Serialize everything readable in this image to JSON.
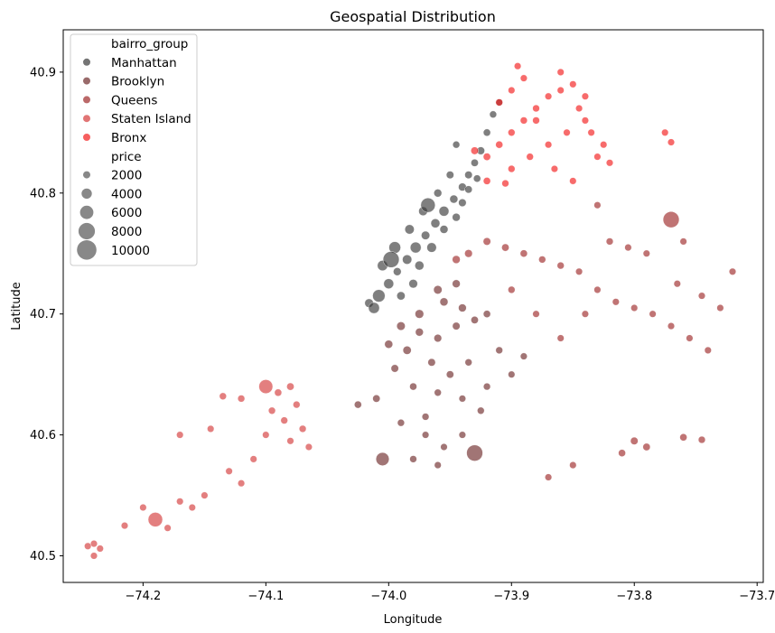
{
  "chart_data": {
    "type": "scatter",
    "title": "Geospatial Distribution",
    "xlabel": "Longitude",
    "ylabel": "Latitude",
    "xlim": [
      -74.265,
      -73.695
    ],
    "ylim": [
      40.478,
      40.935
    ],
    "xticks": [
      -74.2,
      -74.1,
      -74.0,
      -73.9,
      -73.8,
      -73.7
    ],
    "xtick_labels": [
      "−74.2",
      "−74.1",
      "−74.0",
      "−73.9",
      "−73.8",
      "−73.7"
    ],
    "yticks": [
      40.5,
      40.6,
      40.7,
      40.8,
      40.9
    ],
    "ytick_labels": [
      "40.5",
      "40.6",
      "40.7",
      "40.8",
      "40.9"
    ],
    "grid": false,
    "legend": {
      "placement": "top-left",
      "hue_title": "bairro_group",
      "size_title": "price",
      "hue_entries": [
        {
          "label": "Manhattan",
          "color": "#3a3a3a"
        },
        {
          "label": "Brooklyn",
          "color": "#6e2b2b"
        },
        {
          "label": "Queens",
          "color": "#9e2a2a"
        },
        {
          "label": "Staten Island",
          "color": "#d43a3a"
        },
        {
          "label": "Bronx",
          "color": "#f21b1b"
        }
      ],
      "size_entries": [
        {
          "label": "2000",
          "value": 2000
        },
        {
          "label": "4000",
          "value": 4000
        },
        {
          "label": "6000",
          "value": 6000
        },
        {
          "label": "8000",
          "value": 8000
        },
        {
          "label": "10000",
          "value": 10000
        }
      ]
    },
    "series": [
      {
        "name": "Manhattan",
        "color": "#3a3a3a",
        "points": [
          [
            -74.016,
            40.709,
            200
          ],
          [
            -74.008,
            40.715,
            600
          ],
          [
            -74.0,
            40.725,
            300
          ],
          [
            -73.993,
            40.735,
            150
          ],
          [
            -73.985,
            40.745,
            250
          ],
          [
            -73.978,
            40.755,
            400
          ],
          [
            -73.97,
            40.765,
            180
          ],
          [
            -73.962,
            40.775,
            220
          ],
          [
            -73.955,
            40.785,
            300
          ],
          [
            -73.947,
            40.795,
            160
          ],
          [
            -73.94,
            40.805,
            140
          ],
          [
            -73.935,
            40.815,
            120
          ],
          [
            -73.93,
            40.825,
            110
          ],
          [
            -73.925,
            40.835,
            130
          ],
          [
            -73.92,
            40.85,
            100
          ],
          [
            -73.915,
            40.865,
            90
          ],
          [
            -73.91,
            40.875,
            95
          ],
          [
            -74.005,
            40.74,
            350
          ],
          [
            -73.995,
            40.755,
            500
          ],
          [
            -73.983,
            40.77,
            260
          ],
          [
            -73.972,
            40.785,
            210
          ],
          [
            -73.96,
            40.8,
            150
          ],
          [
            -73.95,
            40.815,
            120
          ],
          [
            -73.99,
            40.715,
            170
          ],
          [
            -73.98,
            40.725,
            190
          ],
          [
            -73.975,
            40.74,
            230
          ],
          [
            -73.965,
            40.755,
            280
          ],
          [
            -73.955,
            40.77,
            160
          ],
          [
            -73.945,
            40.78,
            140
          ],
          [
            -73.94,
            40.792,
            130
          ],
          [
            -73.935,
            40.803,
            115
          ],
          [
            -73.928,
            40.812,
            105
          ],
          [
            -74.012,
            40.705,
            420
          ],
          [
            -73.998,
            40.745,
            1200
          ],
          [
            -73.968,
            40.79,
            900
          ],
          [
            -73.945,
            40.84,
            95
          ]
        ]
      },
      {
        "name": "Brooklyn",
        "color": "#6e2b2b",
        "points": [
          [
            -73.99,
            40.69,
            180
          ],
          [
            -73.975,
            40.685,
            150
          ],
          [
            -73.96,
            40.68,
            130
          ],
          [
            -73.945,
            40.69,
            120
          ],
          [
            -73.93,
            40.695,
            110
          ],
          [
            -73.955,
            40.71,
            160
          ],
          [
            -73.94,
            40.705,
            140
          ],
          [
            -73.92,
            40.7,
            100
          ],
          [
            -73.985,
            40.67,
            170
          ],
          [
            -73.965,
            40.66,
            125
          ],
          [
            -73.95,
            40.65,
            110
          ],
          [
            -73.935,
            40.66,
            95
          ],
          [
            -73.91,
            40.67,
            90
          ],
          [
            -73.995,
            40.655,
            120
          ],
          [
            -73.98,
            40.64,
            100
          ],
          [
            -73.96,
            40.635,
            95
          ],
          [
            -73.94,
            40.63,
            85
          ],
          [
            -74.01,
            40.63,
            110
          ],
          [
            -74.025,
            40.625,
            100
          ],
          [
            -73.99,
            40.61,
            90
          ],
          [
            -73.97,
            40.6,
            85
          ],
          [
            -73.955,
            40.59,
            80
          ],
          [
            -73.94,
            40.6,
            85
          ],
          [
            -73.92,
            40.64,
            90
          ],
          [
            -73.9,
            40.65,
            85
          ],
          [
            -73.89,
            40.665,
            80
          ],
          [
            -73.975,
            40.7,
            200
          ],
          [
            -74.0,
            40.675,
            160
          ],
          [
            -73.96,
            40.72,
            180
          ],
          [
            -73.945,
            40.725,
            150
          ],
          [
            -73.98,
            40.58,
            90
          ],
          [
            -73.96,
            40.575,
            85
          ],
          [
            -74.005,
            40.58,
            700
          ],
          [
            -73.93,
            40.585,
            1200
          ],
          [
            -73.925,
            40.62,
            90
          ],
          [
            -73.97,
            40.615,
            95
          ]
        ]
      },
      {
        "name": "Queens",
        "color": "#9e2a2a",
        "points": [
          [
            -73.92,
            40.76,
            120
          ],
          [
            -73.905,
            40.755,
            110
          ],
          [
            -73.89,
            40.75,
            100
          ],
          [
            -73.875,
            40.745,
            95
          ],
          [
            -73.86,
            40.74,
            90
          ],
          [
            -73.845,
            40.735,
            85
          ],
          [
            -73.83,
            40.72,
            85
          ],
          [
            -73.815,
            40.71,
            80
          ],
          [
            -73.8,
            40.705,
            80
          ],
          [
            -73.785,
            40.7,
            80
          ],
          [
            -73.77,
            40.69,
            80
          ],
          [
            -73.755,
            40.68,
            80
          ],
          [
            -73.74,
            40.67,
            80
          ],
          [
            -73.82,
            40.76,
            90
          ],
          [
            -73.805,
            40.755,
            85
          ],
          [
            -73.79,
            40.75,
            85
          ],
          [
            -73.84,
            40.7,
            80
          ],
          [
            -73.86,
            40.68,
            80
          ],
          [
            -73.88,
            40.7,
            85
          ],
          [
            -73.9,
            40.72,
            90
          ],
          [
            -73.935,
            40.75,
            130
          ],
          [
            -73.945,
            40.745,
            140
          ],
          [
            -73.765,
            40.725,
            80
          ],
          [
            -73.745,
            40.715,
            80
          ],
          [
            -73.73,
            40.705,
            80
          ],
          [
            -73.72,
            40.735,
            80
          ],
          [
            -73.77,
            40.778,
            1200
          ],
          [
            -73.8,
            40.595,
            120
          ],
          [
            -73.79,
            40.59,
            110
          ],
          [
            -73.76,
            40.598,
            100
          ],
          [
            -73.745,
            40.596,
            90
          ],
          [
            -73.81,
            40.585,
            100
          ],
          [
            -73.85,
            40.575,
            85
          ],
          [
            -73.87,
            40.565,
            80
          ],
          [
            -73.83,
            40.79,
            80
          ],
          [
            -73.76,
            40.76,
            85
          ]
        ]
      },
      {
        "name": "Staten Island",
        "color": "#d43a3a",
        "points": [
          [
            -74.08,
            40.64,
            110
          ],
          [
            -74.09,
            40.635,
            100
          ],
          [
            -74.075,
            40.625,
            95
          ],
          [
            -74.1,
            40.64,
            800
          ],
          [
            -74.12,
            40.63,
            90
          ],
          [
            -74.135,
            40.632,
            90
          ],
          [
            -74.07,
            40.605,
            90
          ],
          [
            -74.08,
            40.595,
            85
          ],
          [
            -74.065,
            40.59,
            85
          ],
          [
            -74.1,
            40.6,
            85
          ],
          [
            -74.11,
            40.58,
            85
          ],
          [
            -74.13,
            40.57,
            85
          ],
          [
            -74.15,
            40.55,
            85
          ],
          [
            -74.16,
            40.54,
            85
          ],
          [
            -74.17,
            40.545,
            85
          ],
          [
            -74.19,
            40.53,
            900
          ],
          [
            -74.2,
            40.54,
            85
          ],
          [
            -74.215,
            40.525,
            85
          ],
          [
            -74.24,
            40.51,
            85
          ],
          [
            -74.245,
            40.508,
            85
          ],
          [
            -74.235,
            40.506,
            85
          ],
          [
            -74.24,
            40.5,
            85
          ],
          [
            -74.085,
            40.612,
            90
          ],
          [
            -74.095,
            40.62,
            90
          ],
          [
            -74.145,
            40.605,
            85
          ],
          [
            -74.17,
            40.6,
            85
          ],
          [
            -74.12,
            40.56,
            85
          ],
          [
            -74.18,
            40.523,
            85
          ]
        ]
      },
      {
        "name": "Bronx",
        "color": "#f21b1b",
        "points": [
          [
            -73.92,
            40.83,
            110
          ],
          [
            -73.91,
            40.84,
            100
          ],
          [
            -73.9,
            40.85,
            95
          ],
          [
            -73.89,
            40.86,
            90
          ],
          [
            -73.88,
            40.87,
            90
          ],
          [
            -73.87,
            40.88,
            85
          ],
          [
            -73.86,
            40.885,
            85
          ],
          [
            -73.85,
            40.89,
            85
          ],
          [
            -73.84,
            40.88,
            85
          ],
          [
            -73.9,
            40.82,
            95
          ],
          [
            -73.885,
            40.83,
            90
          ],
          [
            -73.87,
            40.84,
            85
          ],
          [
            -73.855,
            40.85,
            85
          ],
          [
            -73.84,
            40.86,
            85
          ],
          [
            -73.91,
            40.875,
            90
          ],
          [
            -73.9,
            40.885,
            85
          ],
          [
            -73.89,
            40.895,
            85
          ],
          [
            -73.895,
            40.905,
            85
          ],
          [
            -73.88,
            40.86,
            90
          ],
          [
            -73.865,
            40.82,
            85
          ],
          [
            -73.85,
            40.81,
            85
          ],
          [
            -73.83,
            40.83,
            85
          ],
          [
            -73.82,
            40.825,
            85
          ],
          [
            -73.775,
            40.85,
            85
          ],
          [
            -73.77,
            40.842,
            85
          ],
          [
            -73.93,
            40.835,
            120
          ],
          [
            -73.92,
            40.81,
            100
          ],
          [
            -73.905,
            40.808,
            95
          ],
          [
            -73.86,
            40.9,
            85
          ],
          [
            -73.845,
            40.87,
            85
          ],
          [
            -73.835,
            40.85,
            85
          ],
          [
            -73.825,
            40.84,
            85
          ]
        ]
      }
    ]
  }
}
